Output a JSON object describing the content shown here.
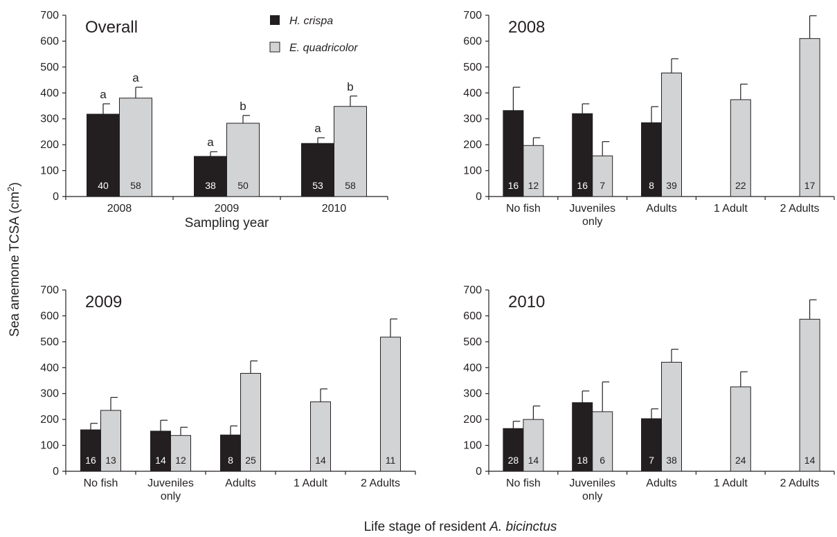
{
  "figure": {
    "ylabel_main": "Sea anemone TCSA (cm",
    "ylabel_sup": "2",
    "ylabel_close": ")",
    "xlabel_prefix": "Life stage of resident ",
    "xlabel_species": "A. bicinctus"
  },
  "legend": [
    {
      "name": "H. crispa",
      "color": "#231f20"
    },
    {
      "name": "E. quadricolor",
      "color": "#d1d3d4"
    }
  ],
  "colors": {
    "axis": "#231f20",
    "dark_bar": "#231f20",
    "light_bar": "#d1d3d4"
  },
  "chart_data": [
    {
      "type": "bar",
      "title": "Overall",
      "xlabel": "Sampling year",
      "ylim": [
        0,
        700
      ],
      "yticks": [
        0,
        100,
        200,
        300,
        400,
        500,
        600,
        700
      ],
      "categories": [
        "2008",
        "2009",
        "2010"
      ],
      "series": [
        {
          "name": "H. crispa",
          "values": [
            318,
            155,
            205
          ],
          "errors": [
            40,
            18,
            22
          ],
          "n": [
            "40",
            "38",
            "53"
          ],
          "sig": [
            "a",
            "a",
            "a"
          ]
        },
        {
          "name": "E. quadricolor",
          "values": [
            380,
            283,
            348
          ],
          "errors": [
            42,
            30,
            40
          ],
          "n": [
            "58",
            "50",
            "58"
          ],
          "sig": [
            "a",
            "b",
            "b"
          ]
        }
      ]
    },
    {
      "type": "bar",
      "title": "2008",
      "xlabel": "",
      "ylim": [
        0,
        700
      ],
      "yticks": [
        0,
        100,
        200,
        300,
        400,
        500,
        600,
        700
      ],
      "categories": [
        [
          "No fish"
        ],
        [
          "Juveniles",
          "only"
        ],
        [
          "Adults"
        ],
        [
          "1 Adult"
        ],
        [
          "2 Adults"
        ]
      ],
      "series": [
        {
          "name": "H. crispa",
          "values": [
            332,
            320,
            285,
            null,
            null
          ],
          "errors": [
            90,
            38,
            62,
            null,
            null
          ],
          "n": [
            "16",
            "16",
            "8",
            null,
            null
          ]
        },
        {
          "name": "E. quadricolor",
          "values": [
            197,
            157,
            477,
            374,
            610
          ],
          "errors": [
            30,
            55,
            55,
            60,
            88
          ],
          "n": [
            "12",
            "7",
            "39",
            "22",
            "17"
          ]
        }
      ]
    },
    {
      "type": "bar",
      "title": "2009",
      "xlabel": "",
      "ylim": [
        0,
        700
      ],
      "yticks": [
        0,
        100,
        200,
        300,
        400,
        500,
        600,
        700
      ],
      "categories": [
        [
          "No fish"
        ],
        [
          "Juveniles",
          "only"
        ],
        [
          "Adults"
        ],
        [
          "1 Adult"
        ],
        [
          "2 Adults"
        ]
      ],
      "series": [
        {
          "name": "H. crispa",
          "values": [
            160,
            155,
            140,
            null,
            null
          ],
          "errors": [
            25,
            42,
            35,
            null,
            null
          ],
          "n": [
            "16",
            "14",
            "8",
            null,
            null
          ]
        },
        {
          "name": "E. quadricolor",
          "values": [
            235,
            138,
            378,
            268,
            518
          ],
          "errors": [
            50,
            32,
            48,
            50,
            70
          ],
          "n": [
            "13",
            "12",
            "25",
            "14",
            "11"
          ]
        }
      ]
    },
    {
      "type": "bar",
      "title": "2010",
      "xlabel": "",
      "ylim": [
        0,
        700
      ],
      "yticks": [
        0,
        100,
        200,
        300,
        400,
        500,
        600,
        700
      ],
      "categories": [
        [
          "No fish"
        ],
        [
          "Juveniles",
          "only"
        ],
        [
          "Adults"
        ],
        [
          "1 Adult"
        ],
        [
          "2 Adults"
        ]
      ],
      "series": [
        {
          "name": "H. crispa",
          "values": [
            165,
            265,
            203,
            null,
            null
          ],
          "errors": [
            28,
            45,
            38,
            null,
            null
          ],
          "n": [
            "28",
            "18",
            "7",
            null,
            null
          ]
        },
        {
          "name": "E. quadricolor",
          "values": [
            200,
            230,
            421,
            326,
            587
          ],
          "errors": [
            52,
            115,
            50,
            58,
            75
          ],
          "n": [
            "14",
            "6",
            "38",
            "24",
            "14"
          ]
        }
      ]
    }
  ]
}
